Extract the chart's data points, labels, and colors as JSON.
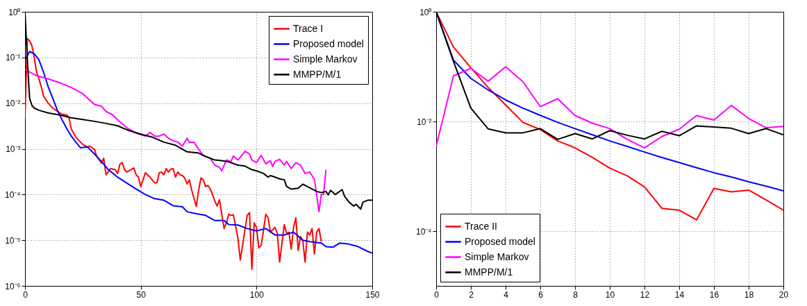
{
  "chart_data": [
    {
      "type": "line",
      "xlim": [
        0,
        150
      ],
      "xticks": [
        0,
        50,
        100,
        150
      ],
      "ylim": [
        1e-06,
        1
      ],
      "log": true,
      "grid": true,
      "legend": "top right",
      "yticks": [
        {
          "value": 1e-06,
          "label": "10⁻⁶"
        },
        {
          "value": 1e-05,
          "label": "10⁻⁵"
        },
        {
          "value": 0.0001,
          "label": "10⁻⁴"
        },
        {
          "value": 0.001,
          "label": "10⁻³"
        },
        {
          "value": 0.01,
          "label": "10⁻²"
        },
        {
          "value": 0.1,
          "label": "10⁻¹"
        },
        {
          "value": 1,
          "label": "10⁰"
        }
      ],
      "series": [
        {
          "name": "Trace I",
          "color": "#ff0000",
          "x": [
            0,
            1,
            2,
            3,
            4,
            5,
            6,
            7,
            8,
            10,
            12,
            14,
            16,
            18,
            19,
            20,
            22,
            25,
            27,
            28,
            30,
            31,
            33,
            34,
            35,
            37,
            39,
            40,
            41,
            42,
            43,
            44,
            47,
            48,
            49,
            50,
            52,
            54,
            56,
            57,
            58,
            59,
            60,
            61,
            62,
            63,
            64,
            65,
            66,
            67,
            68,
            69,
            70,
            71,
            72,
            74,
            75,
            76,
            77,
            78,
            79,
            80,
            81,
            82,
            83,
            84,
            85,
            86,
            87,
            88,
            89,
            90,
            91,
            92,
            93,
            94,
            95,
            96,
            97,
            98,
            99,
            100,
            101,
            102,
            103,
            104,
            105,
            106,
            108,
            109,
            110,
            111,
            112,
            113,
            114,
            115,
            116,
            117,
            118,
            119,
            120,
            121,
            122,
            123,
            124,
            125,
            126,
            127,
            128
          ],
          "values": [
            0.0048,
            0.26,
            0.23,
            0.18,
            0.1,
            0.048,
            0.034,
            0.023,
            0.0144,
            0.01,
            0.0078,
            0.0066,
            0.0057,
            0.0055,
            0.0048,
            0.0027,
            0.0018,
            0.00124,
            0.0011,
            0.00114,
            0.00098,
            0.00068,
            0.00049,
            0.00062,
            0.00027,
            0.00037,
            0.00035,
            0.00029,
            0.00046,
            0.0005,
            0.00035,
            0.00031,
            0.00038,
            0.00027,
            0.00024,
            0.000149,
            0.0003,
            0.00024,
            0.00018,
            0.00018,
            0.0003,
            0.00031,
            0.00027,
            0.00037,
            0.00031,
            0.00036,
            0.00037,
            0.00024,
            0.00031,
            0.00027,
            0.00026,
            0.00023,
            0.00017,
            0.00021,
            0.000125,
            5.5e-05,
            0.000125,
            0.00023,
            0.00021,
            0.000149,
            0.000158,
            0.000133,
            0.0001,
            7.2e-05,
            5.6e-05,
            7.7e-05,
            3.7e-05,
            1.8e-05,
            2.4e-05,
            3.7e-05,
            3.5e-05,
            3.6e-05,
            2e-05,
            1.1e-05,
            3.7e-06,
            7.7e-06,
            1.7e-05,
            3.5e-05,
            4e-05,
            2.3e-06,
            2.4e-05,
            1.9e-05,
            6.8e-06,
            7.7e-06,
            1.6e-05,
            3.7e-05,
            3.1e-05,
            1.5e-05,
            1.9e-05,
            1.4e-05,
            3.3e-06,
            8.6e-06,
            2.2e-05,
            1.4e-05,
            1.5e-05,
            6.4e-06,
            1.9e-05,
            3.1e-05,
            6e-06,
            1.2e-05,
            9.8e-06,
            3.3e-06,
            1.5e-05,
            1.3e-05,
            1.8e-05,
            5e-06,
            1.5e-05,
            1.8e-05,
            9.3e-06
          ]
        },
        {
          "name": "Proposed model",
          "color": "#0000ff",
          "x": [
            0,
            2,
            4,
            6,
            8,
            10,
            12,
            14,
            16,
            18,
            20,
            22,
            24,
            27,
            30,
            33,
            36,
            40,
            44,
            48,
            52,
            56,
            60,
            64,
            68,
            70,
            74,
            78,
            82,
            86,
            88,
            92,
            96,
            100,
            104,
            108,
            112,
            116,
            120,
            124,
            128,
            130,
            133,
            136,
            140,
            144,
            148,
            150
          ],
          "values": [
            0.089,
            0.135,
            0.12,
            0.089,
            0.048,
            0.023,
            0.0127,
            0.007,
            0.0043,
            0.0028,
            0.0019,
            0.0014,
            0.00105,
            0.0011,
            0.00077,
            0.00053,
            0.00035,
            0.00024,
            0.000178,
            0.000132,
            0.0001,
            8.1e-05,
            7.5e-05,
            5.7e-05,
            5.4e-05,
            4.2e-05,
            3.8e-05,
            3.5e-05,
            2.7e-05,
            2.7e-05,
            2.2e-05,
            2.15e-05,
            1.8e-05,
            1.6e-05,
            1.8e-05,
            1.3e-05,
            1.3e-05,
            1.5e-05,
            1e-05,
            9.1e-06,
            8.7e-06,
            7.2e-06,
            7e-06,
            8.7e-06,
            8.2e-06,
            7.2e-06,
            5.7e-06,
            5.2e-06
          ]
        },
        {
          "name": "Simple Markov",
          "color": "#ff00ff",
          "x": [
            0,
            2,
            5,
            10,
            15,
            20,
            25,
            30,
            33,
            35,
            38,
            40,
            44,
            48,
            52,
            54,
            56,
            58,
            60,
            62,
            64,
            66,
            68,
            70,
            71,
            73,
            75,
            77,
            80,
            82,
            84,
            85,
            87,
            89,
            90,
            92,
            94,
            95,
            97,
            98,
            100,
            102,
            104,
            106,
            107,
            108,
            110,
            112,
            113,
            115,
            117,
            119,
            121,
            123,
            125,
            126,
            127,
            128,
            129,
            130
          ],
          "values": [
            0.055,
            0.048,
            0.04,
            0.034,
            0.028,
            0.022,
            0.016,
            0.0094,
            0.0086,
            0.0066,
            0.0055,
            0.0043,
            0.0029,
            0.0022,
            0.0019,
            0.0023,
            0.0019,
            0.0019,
            0.0021,
            0.0017,
            0.0015,
            0.0014,
            0.00115,
            0.0017,
            0.0014,
            0.0014,
            0.00098,
            0.00072,
            0.00062,
            0.00044,
            0.00039,
            0.00033,
            0.00057,
            0.00053,
            0.0007,
            0.00057,
            0.00075,
            0.00089,
            0.00077,
            0.00057,
            0.0005,
            0.00072,
            0.00047,
            0.00055,
            0.00041,
            0.00053,
            0.00059,
            0.00044,
            0.00053,
            0.00037,
            0.0005,
            0.00044,
            0.00029,
            0.00031,
            0.000215,
            9.8e-05,
            4.2e-05,
            0.0001,
            0.0001,
            0.00035
          ]
        },
        {
          "name": "MMPP/M/1",
          "color": "#000000",
          "x": [
            0,
            1,
            2,
            3,
            4,
            6,
            10,
            15,
            20,
            25,
            30,
            35,
            40,
            45,
            50,
            55,
            60,
            65,
            67,
            70,
            75,
            78,
            82,
            85,
            88,
            92,
            95,
            98,
            100,
            103,
            105,
            106,
            108,
            110,
            112,
            113,
            115,
            118,
            120,
            122,
            124,
            126,
            128,
            130,
            131,
            132,
            134,
            137,
            138,
            140,
            142,
            143,
            145,
            146,
            148,
            150
          ],
          "values": [
            1,
            0.089,
            0.0127,
            0.0089,
            0.0078,
            0.007,
            0.0061,
            0.0055,
            0.0048,
            0.0044,
            0.004,
            0.0036,
            0.0032,
            0.0025,
            0.0021,
            0.0018,
            0.0014,
            0.0012,
            0.00105,
            0.00086,
            0.00081,
            0.00068,
            0.00057,
            0.00055,
            0.00052,
            0.00044,
            0.00042,
            0.00035,
            0.00033,
            0.00029,
            0.00024,
            0.00026,
            0.00024,
            0.00022,
            0.00021,
            0.000149,
            0.000132,
            0.000137,
            0.000168,
            0.000149,
            0.000132,
            0.000117,
            0.00011,
            0.000117,
            9.8e-05,
            0.000124,
            0.0001,
            0.000128,
            9.2e-05,
            6.8e-05,
            5.6e-05,
            6.1e-05,
            4.8e-05,
            6.8e-05,
            7.5e-05,
            7.5e-05
          ]
        }
      ]
    },
    {
      "type": "line",
      "xlim": [
        0,
        20
      ],
      "xticks": [
        0,
        2,
        4,
        6,
        8,
        10,
        12,
        14,
        16,
        18,
        20
      ],
      "ylim": [
        1e-05,
        1
      ],
      "log": true,
      "grid": true,
      "legend": "bottom left",
      "yticks": [
        {
          "value": 0.0001,
          "label": "10⁻⁴"
        },
        {
          "value": 0.01,
          "label": "10⁻²"
        },
        {
          "value": 1,
          "label": "10⁰"
        }
      ],
      "x": [
        0,
        1,
        2,
        3,
        4,
        5,
        6,
        7,
        8,
        9,
        10,
        11,
        12,
        13,
        14,
        15,
        16,
        17,
        18,
        19,
        20
      ],
      "series": [
        {
          "name": "Trace II",
          "color": "#ff0000",
          "values": [
            1,
            0.227,
            0.0955,
            0.0416,
            0.02,
            0.0096,
            0.0071,
            0.0044,
            0.0033,
            0.0022,
            0.0014,
            0.00102,
            0.00064,
            0.00026,
            0.00024,
            0.00016,
            0.0006,
            0.00052,
            0.00056,
            0.00037,
            0.00024
          ]
        },
        {
          "name": "Proposed model",
          "color": "#0000ff",
          "values": [
            1,
            0.131,
            0.061,
            0.0374,
            0.0247,
            0.0175,
            0.0129,
            0.0096,
            0.0074,
            0.0057,
            0.0044,
            0.0035,
            0.00276,
            0.0022,
            0.00178,
            0.00143,
            0.00116,
            0.00097,
            0.00079,
            0.00066,
            0.00054
          ]
        },
        {
          "name": "Simple Markov",
          "color": "#ff00ff",
          "values": [
            0.0035,
            0.068,
            0.093,
            0.054,
            0.099,
            0.053,
            0.0186,
            0.026,
            0.0128,
            0.0093,
            0.0074,
            0.0047,
            0.0033,
            0.0053,
            0.0072,
            0.0128,
            0.0106,
            0.0196,
            0.0113,
            0.0077,
            0.0081
          ]
        },
        {
          "name": "MMPP/M/1",
          "color": "#000000",
          "values": [
            1,
            0.124,
            0.0175,
            0.0073,
            0.0062,
            0.0062,
            0.0074,
            0.0047,
            0.006,
            0.0048,
            0.0068,
            0.0056,
            0.0048,
            0.0066,
            0.0055,
            0.0083,
            0.0079,
            0.0075,
            0.006,
            0.0074,
            0.0057
          ]
        }
      ]
    }
  ]
}
